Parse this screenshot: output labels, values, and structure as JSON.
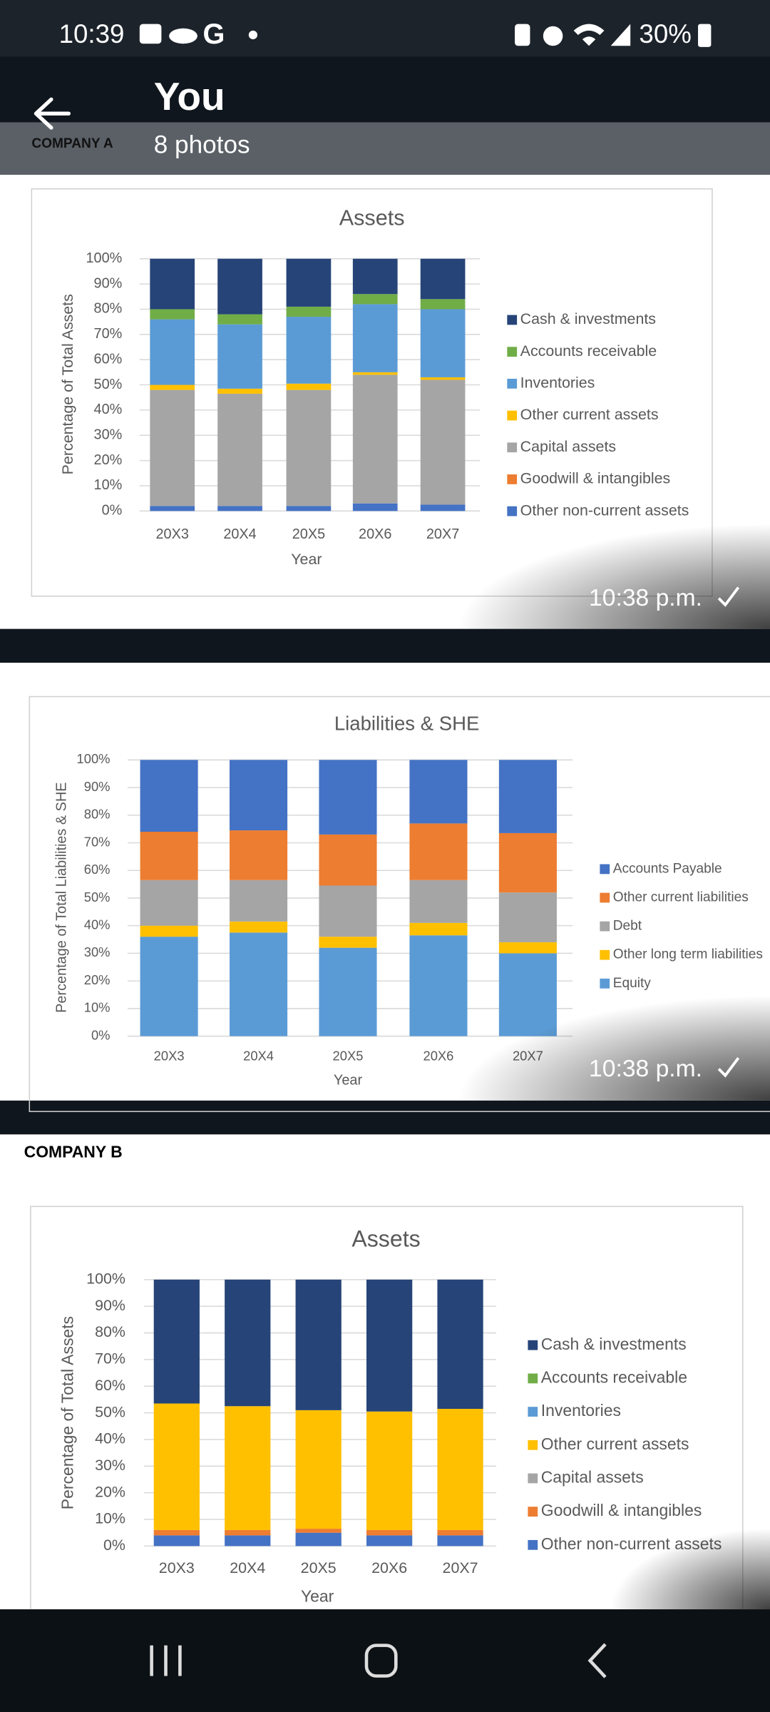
{
  "status_bar": {
    "time": "10:39",
    "battery": "30%"
  },
  "header": {
    "title": "You",
    "subtitle": "8 photos"
  },
  "sections": [
    "COMPANY A",
    "COMPANY B"
  ],
  "timestamps": [
    "10:38 p.m.",
    "10:38 p.m."
  ],
  "chart_data": [
    {
      "type": "bar",
      "stacked": true,
      "title": "Assets",
      "x_label": "Year",
      "y_label": "Percentage of Total Assets",
      "categories": [
        "20X3",
        "20X4",
        "20X5",
        "20X6",
        "20X7"
      ],
      "series": [
        {
          "name": "Cash & investments",
          "color": "#264478",
          "values": [
            20,
            22,
            19,
            14,
            16
          ]
        },
        {
          "name": "Accounts receivable",
          "color": "#70ad47",
          "values": [
            4,
            4,
            4,
            4,
            4
          ]
        },
        {
          "name": "Inventories",
          "color": "#5b9bd5",
          "values": [
            26,
            25.5,
            26.5,
            27,
            27
          ]
        },
        {
          "name": "Other current assets",
          "color": "#ffc000",
          "values": [
            2,
            2,
            2.5,
            1,
            1
          ]
        },
        {
          "name": "Capital assets",
          "color": "#a5a5a5",
          "values": [
            46,
            44.5,
            46,
            51,
            49.5
          ]
        },
        {
          "name": "Goodwill & intangibles",
          "color": "#ed7d31",
          "values": [
            0,
            0,
            0,
            0,
            0
          ]
        },
        {
          "name": "Other non-current assets",
          "color": "#4472c4",
          "values": [
            2,
            2,
            2,
            3,
            2.5
          ]
        }
      ],
      "ylim": [
        0,
        100
      ],
      "yticks": [
        {
          "value": 0,
          "label": "0%"
        },
        {
          "value": 10,
          "label": "10%"
        },
        {
          "value": 20,
          "label": "20%"
        },
        {
          "value": 30,
          "label": "30%"
        },
        {
          "value": 40,
          "label": "40%"
        },
        {
          "value": 50,
          "label": "50%"
        },
        {
          "value": 60,
          "label": "60%"
        },
        {
          "value": 70,
          "label": "70%"
        },
        {
          "value": 80,
          "label": "80%"
        },
        {
          "value": 90,
          "label": "90%"
        },
        {
          "value": 100,
          "label": "100%"
        }
      ],
      "grid": true,
      "legend": "right"
    },
    {
      "type": "bar",
      "stacked": true,
      "title": "Liabilities & SHE",
      "x_label": "Year",
      "y_label": "Percentage of Total Liabilities & SHE",
      "categories": [
        "20X3",
        "20X4",
        "20X5",
        "20X6",
        "20X7"
      ],
      "series": [
        {
          "name": "Accounts Payable",
          "color": "#4472c4",
          "values": [
            26,
            25.5,
            27,
            23,
            26.5
          ]
        },
        {
          "name": "Other current liabilities",
          "color": "#ed7d31",
          "values": [
            17.5,
            18,
            18.5,
            20.5,
            21.5
          ]
        },
        {
          "name": "Debt",
          "color": "#a5a5a5",
          "values": [
            16.5,
            15,
            18.5,
            15.5,
            18
          ]
        },
        {
          "name": "Other long term liabilities",
          "color": "#ffc000",
          "values": [
            4,
            4,
            4,
            4.5,
            4
          ]
        },
        {
          "name": "Equity",
          "color": "#5b9bd5",
          "values": [
            36,
            37.5,
            32,
            36.5,
            30
          ]
        }
      ],
      "ylim": [
        0,
        100
      ],
      "yticks": [
        {
          "value": 0,
          "label": "0%"
        },
        {
          "value": 10,
          "label": "10%"
        },
        {
          "value": 20,
          "label": "20%"
        },
        {
          "value": 30,
          "label": "30%"
        },
        {
          "value": 40,
          "label": "40%"
        },
        {
          "value": 50,
          "label": "50%"
        },
        {
          "value": 60,
          "label": "60%"
        },
        {
          "value": 70,
          "label": "70%"
        },
        {
          "value": 80,
          "label": "80%"
        },
        {
          "value": 90,
          "label": "90%"
        },
        {
          "value": 100,
          "label": "100%"
        }
      ],
      "grid": true,
      "legend": "right"
    },
    {
      "type": "bar",
      "stacked": true,
      "title": "Assets",
      "x_label": "Year",
      "y_label": "Percentage of Total Assets",
      "categories": [
        "20X3",
        "20X4",
        "20X5",
        "20X6",
        "20X7"
      ],
      "series": [
        {
          "name": "Cash & investments",
          "color": "#264478",
          "values": [
            46.5,
            47.5,
            49,
            49.5,
            48.5
          ]
        },
        {
          "name": "Accounts receivable",
          "color": "#70ad47",
          "values": [
            0,
            0,
            0,
            0,
            0
          ]
        },
        {
          "name": "Inventories",
          "color": "#5b9bd5",
          "values": [
            0,
            0,
            0,
            0,
            0
          ]
        },
        {
          "name": "Other current assets",
          "color": "#ffc000",
          "values": [
            47.5,
            46.5,
            44.5,
            44.5,
            45.5
          ]
        },
        {
          "name": "Capital assets",
          "color": "#a5a5a5",
          "values": [
            0,
            0,
            0,
            0,
            0
          ]
        },
        {
          "name": "Goodwill & intangibles",
          "color": "#ed7d31",
          "values": [
            2,
            2,
            1.5,
            2,
            2
          ]
        },
        {
          "name": "Other non-current assets",
          "color": "#4472c4",
          "values": [
            4,
            4,
            5,
            4,
            4
          ]
        }
      ],
      "ylim": [
        0,
        100
      ],
      "yticks": [
        {
          "value": 0,
          "label": "0%"
        },
        {
          "value": 10,
          "label": "10%"
        },
        {
          "value": 20,
          "label": "20%"
        },
        {
          "value": 30,
          "label": "30%"
        },
        {
          "value": 40,
          "label": "40%"
        },
        {
          "value": 50,
          "label": "50%"
        },
        {
          "value": 60,
          "label": "60%"
        },
        {
          "value": 70,
          "label": "70%"
        },
        {
          "value": 80,
          "label": "80%"
        },
        {
          "value": 90,
          "label": "90%"
        },
        {
          "value": 100,
          "label": "100%"
        }
      ],
      "grid": true,
      "legend": "right"
    }
  ]
}
